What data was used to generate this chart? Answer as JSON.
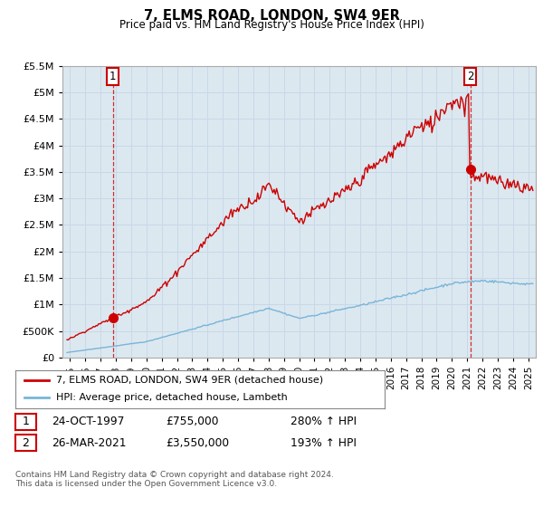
{
  "title": "7, ELMS ROAD, LONDON, SW4 9ER",
  "subtitle": "Price paid vs. HM Land Registry's House Price Index (HPI)",
  "sale1_price": 755000,
  "sale2_price": 3550000,
  "sale1_annotation": "24-OCT-1997",
  "sale2_annotation": "26-MAR-2021",
  "sale1_pct": "280% ↑ HPI",
  "sale2_pct": "193% ↑ HPI",
  "legend_property": "7, ELMS ROAD, LONDON, SW4 9ER (detached house)",
  "legend_hpi": "HPI: Average price, detached house, Lambeth",
  "footer": "Contains HM Land Registry data © Crown copyright and database right 2024.\nThis data is licensed under the Open Government Licence v3.0.",
  "hpi_color": "#7ab4d8",
  "property_color": "#cc0000",
  "annotation_box_color": "#cc0000",
  "grid_color": "#c8d8e8",
  "plot_bg_color": "#dce8f0",
  "background_color": "#ffffff",
  "ylim_min": 0,
  "ylim_max": 5500000,
  "xlim_min": 1994.5,
  "xlim_max": 2025.5
}
